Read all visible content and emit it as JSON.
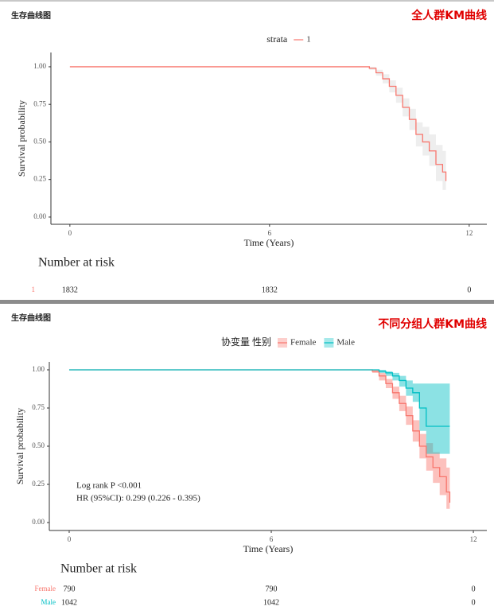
{
  "chart_data": [
    {
      "type": "km",
      "title": "生存曲线图",
      "subtitle": "全人群KM曲线",
      "legend_title": "strata",
      "x_label": "Time (Years)",
      "y_label": "Survival probability",
      "xlim": [
        -0.57,
        12.53
      ],
      "ylim": [
        -0.048,
        1.095
      ],
      "xticks": [
        0,
        6,
        12
      ],
      "yticks": [
        {
          "value": 0,
          "label": "0.00"
        },
        0.25,
        {
          "value": 0.5,
          "label": "0.50"
        },
        0.75,
        {
          "value": 1,
          "label": "1.00"
        }
      ],
      "series": [
        {
          "name": "1",
          "color": "#f8766d",
          "band_color": "#d9d9d9",
          "x": [
            0,
            8.8,
            9.0,
            9.2,
            9.4,
            9.6,
            9.8,
            10.0,
            10.2,
            10.4,
            10.6,
            10.8,
            11.0,
            11.2,
            11.3
          ],
          "values": [
            1,
            1,
            0.99,
            0.96,
            0.92,
            0.87,
            0.81,
            0.73,
            0.65,
            0.55,
            0.5,
            0.44,
            0.35,
            0.3,
            0.24
          ],
          "ci_lower": [
            1,
            1,
            0.98,
            0.94,
            0.89,
            0.83,
            0.76,
            0.67,
            0.58,
            0.47,
            0.41,
            0.34,
            0.24,
            0.18,
            0.12
          ],
          "ci_upper": [
            1,
            1,
            1,
            0.98,
            0.95,
            0.91,
            0.86,
            0.79,
            0.72,
            0.63,
            0.6,
            0.55,
            0.48,
            0.44,
            0.4
          ]
        }
      ],
      "annotations": [],
      "risk_table": {
        "title": "Number at risk",
        "rows": [
          {
            "name": "1",
            "color": "#f8766d",
            "values": [
              1832,
              1832,
              0
            ]
          }
        ]
      }
    },
    {
      "type": "km",
      "title": "生存曲线图",
      "subtitle": "不同分组人群KM曲线",
      "legend_title": "协变量 性别",
      "x_label": "Time (Years)",
      "y_label": "Survival probability",
      "xlim": [
        -0.59,
        12.4
      ],
      "ylim": [
        -0.052,
        1.052
      ],
      "xticks": [
        0,
        6,
        12
      ],
      "yticks": [
        {
          "value": 0,
          "label": "0.00"
        },
        0.25,
        {
          "value": 0.5,
          "label": "0.50"
        },
        0.75,
        {
          "value": 1,
          "label": "1.00"
        }
      ],
      "series": [
        {
          "name": "Female",
          "color": "#f8766d",
          "band_color": "#f8766d",
          "x": [
            0,
            8.8,
            9.0,
            9.2,
            9.4,
            9.6,
            9.8,
            10.0,
            10.2,
            10.4,
            10.6,
            10.8,
            11.0,
            11.2,
            11.3
          ],
          "values": [
            1,
            1,
            0.99,
            0.96,
            0.91,
            0.85,
            0.78,
            0.7,
            0.6,
            0.5,
            0.43,
            0.36,
            0.3,
            0.2,
            0.13
          ],
          "ci_lower": [
            1,
            1,
            0.98,
            0.93,
            0.88,
            0.81,
            0.73,
            0.64,
            0.53,
            0.42,
            0.34,
            0.26,
            0.18,
            0.09,
            0.05
          ],
          "ci_upper": [
            1,
            1,
            1,
            0.98,
            0.94,
            0.89,
            0.83,
            0.76,
            0.67,
            0.58,
            0.52,
            0.46,
            0.42,
            0.36,
            0.3
          ]
        },
        {
          "name": "Male",
          "color": "#00bfc4",
          "band_color": "#00bfc4",
          "x": [
            0,
            8.8,
            9.0,
            9.2,
            9.4,
            9.6,
            9.8,
            10.0,
            10.2,
            10.4,
            10.6,
            11.0,
            11.3
          ],
          "values": [
            1,
            1,
            1,
            0.99,
            0.98,
            0.96,
            0.93,
            0.88,
            0.85,
            0.75,
            0.63,
            0.63,
            0.63
          ],
          "ci_lower": [
            1,
            1,
            1,
            0.98,
            0.96,
            0.93,
            0.89,
            0.83,
            0.79,
            0.6,
            0.45,
            0.45,
            0.45
          ],
          "ci_upper": [
            1,
            1,
            1,
            1,
            0.99,
            0.98,
            0.96,
            0.93,
            0.91,
            0.91,
            0.91,
            0.91,
            0.91
          ]
        }
      ],
      "annotations": [
        "Log rank P <0.001",
        "HR (95%CI): 0.299 (0.226 - 0.395)"
      ],
      "risk_table": {
        "title": "Number at risk",
        "rows": [
          {
            "name": "Female",
            "color": "#f8766d",
            "values": [
              790,
              790,
              0
            ]
          },
          {
            "name": "Male",
            "color": "#00bfc4",
            "values": [
              1042,
              1042,
              0
            ]
          }
        ]
      }
    }
  ]
}
